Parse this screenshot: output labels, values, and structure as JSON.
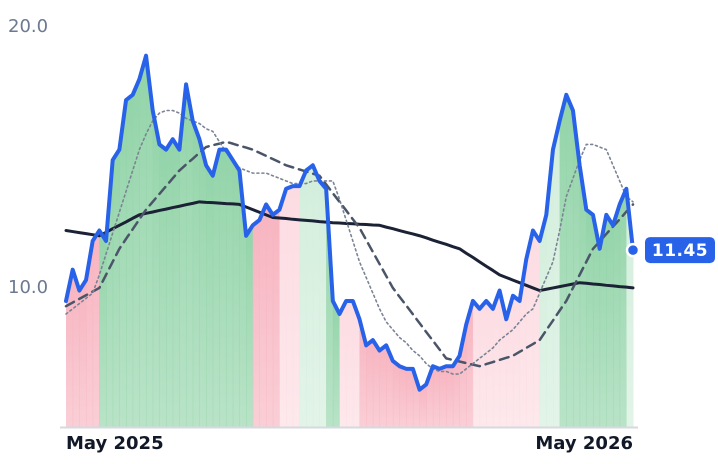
{
  "chart_data": {
    "type": "line",
    "categories": [
      "May 2025",
      null,
      null,
      null,
      null,
      null,
      null,
      null,
      null,
      null,
      null,
      null,
      null,
      null,
      null,
      null,
      null,
      null,
      null,
      null,
      null,
      null,
      null,
      null,
      null,
      null,
      null,
      null,
      null,
      null,
      null,
      null,
      null,
      null,
      null,
      null,
      null,
      null,
      null,
      null,
      null,
      null,
      null,
      null,
      null,
      null,
      null,
      null,
      null,
      null,
      null,
      null,
      null,
      null,
      null,
      null,
      null,
      null,
      null,
      null,
      null,
      null,
      null,
      null,
      null,
      null,
      null,
      null,
      null,
      null,
      null,
      null,
      null,
      null,
      null,
      null,
      null,
      null,
      null,
      null,
      null,
      null,
      null,
      null,
      null,
      "May 2026"
    ],
    "ylim": [
      4.67,
      20
    ],
    "yticks": [
      {
        "value": 10,
        "label": "10.0"
      },
      {
        "value": 20,
        "label": "20.0"
      }
    ],
    "series": [
      {
        "color": "#1c2236",
        "style": "solid",
        "values": [
          12.2,
          12.16,
          12.12,
          12.08,
          12.04,
          12.0,
          12.13,
          12.27,
          12.4,
          12.53,
          12.67,
          12.8,
          12.86,
          12.91,
          12.97,
          13.02,
          13.08,
          13.13,
          13.19,
          13.24,
          13.3,
          13.28,
          13.27,
          13.25,
          13.23,
          13.22,
          13.2,
          13.1,
          13.0,
          12.9,
          12.8,
          12.7,
          12.68,
          12.66,
          12.63,
          12.61,
          12.59,
          12.57,
          12.54,
          12.52,
          12.5,
          12.49,
          12.47,
          12.46,
          12.44,
          12.43,
          12.41,
          12.4,
          12.33,
          12.27,
          12.2,
          12.13,
          12.07,
          12.0,
          11.92,
          11.83,
          11.75,
          11.67,
          11.58,
          11.5,
          11.33,
          11.17,
          11.0,
          10.83,
          10.67,
          10.5,
          10.4,
          10.3,
          10.2,
          10.1,
          10.0,
          9.9,
          9.95,
          10.0,
          10.05,
          10.1,
          10.15,
          10.2,
          10.18,
          10.15,
          10.13,
          10.1,
          10.08,
          10.05,
          10.03,
          10.0
        ]
      },
      {
        "color": "#4a5568",
        "style": "dashed",
        "values": [
          9.3,
          9.44,
          9.58,
          9.72,
          9.86,
          10.0,
          10.5,
          11.0,
          11.5,
          11.88,
          12.25,
          12.63,
          13.0,
          13.3,
          13.6,
          13.9,
          14.2,
          14.5,
          14.73,
          14.95,
          15.18,
          15.4,
          15.47,
          15.53,
          15.6,
          15.53,
          15.45,
          15.38,
          15.3,
          15.18,
          15.06,
          14.94,
          14.82,
          14.7,
          14.62,
          14.54,
          14.46,
          14.38,
          14.3,
          13.97,
          13.63,
          13.3,
          12.97,
          12.63,
          12.3,
          11.84,
          11.38,
          10.92,
          10.46,
          10.0,
          9.66,
          9.33,
          8.99,
          8.65,
          8.31,
          7.98,
          7.64,
          7.3,
          7.24,
          7.18,
          7.12,
          7.06,
          7.0,
          7.08,
          7.16,
          7.24,
          7.32,
          7.4,
          7.55,
          7.7,
          7.85,
          8.0,
          8.38,
          8.75,
          9.13,
          9.5,
          10.0,
          10.5,
          11.0,
          11.5,
          11.78,
          12.07,
          12.35,
          12.63,
          12.92,
          13.2
        ]
      },
      {
        "color": "#7b8494",
        "style": "dotted",
        "values": [
          9.0,
          9.2,
          9.4,
          9.6,
          9.8,
          10.5,
          11.3,
          12.1,
          12.9,
          13.7,
          14.5,
          15.3,
          15.9,
          16.4,
          16.7,
          16.8,
          16.8,
          16.7,
          16.5,
          16.4,
          16.3,
          16.1,
          16.0,
          15.6,
          15.2,
          14.9,
          14.6,
          14.5,
          14.4,
          14.4,
          14.4,
          14.3,
          14.2,
          14.1,
          14.0,
          14.0,
          14.0,
          14.1,
          14.1,
          14.1,
          14.1,
          13.4,
          12.6,
          11.8,
          11.0,
          10.4,
          9.8,
          9.2,
          8.7,
          8.4,
          8.1,
          7.9,
          7.6,
          7.4,
          7.1,
          6.9,
          6.8,
          6.8,
          6.7,
          6.7,
          6.9,
          7.1,
          7.3,
          7.5,
          7.7,
          8.0,
          8.2,
          8.4,
          8.7,
          9.0,
          9.2,
          9.8,
          10.4,
          11.0,
          12.2,
          13.5,
          14.2,
          14.9,
          15.5,
          15.5,
          15.4,
          15.3,
          14.7,
          14.1,
          13.5,
          13.3
        ]
      },
      {
        "color": "#2862e8",
        "style": "thick",
        "values": [
          9.5,
          10.7,
          9.9,
          10.3,
          11.8,
          12.2,
          11.8,
          14.9,
          15.3,
          17.2,
          17.4,
          18.0,
          18.9,
          16.8,
          15.5,
          15.3,
          15.7,
          15.3,
          17.8,
          16.4,
          15.7,
          14.7,
          14.3,
          15.3,
          15.3,
          14.9,
          14.5,
          12.0,
          12.4,
          12.6,
          13.2,
          12.8,
          13.0,
          13.8,
          13.9,
          13.9,
          14.5,
          14.7,
          14.1,
          13.8,
          9.5,
          9.0,
          9.5,
          9.5,
          8.8,
          7.8,
          8.0,
          7.6,
          7.8,
          7.2,
          7.0,
          6.9,
          6.9,
          6.1,
          6.3,
          7.0,
          6.9,
          7.0,
          7.0,
          7.4,
          8.6,
          9.5,
          9.2,
          9.5,
          9.2,
          9.9,
          8.8,
          9.7,
          9.5,
          11.1,
          12.2,
          11.8,
          12.8,
          15.3,
          16.4,
          17.4,
          16.8,
          14.7,
          13.0,
          12.8,
          11.5,
          12.8,
          12.4,
          13.2,
          13.8,
          11.45
        ],
        "area_colors": [
          "#f7b4c0",
          "#f7b4c0",
          "#f7b4c0",
          "#f7b4c0",
          "#f7b4c0",
          "#93d4a9",
          "#93d4a9",
          "#93d4a9",
          "#93d4a9",
          "#93d4a9",
          "#93d4a9",
          "#93d4a9",
          "#93d4a9",
          "#93d4a9",
          "#93d4a9",
          "#93d4a9",
          "#93d4a9",
          "#93d4a9",
          "#93d4a9",
          "#93d4a9",
          "#93d4a9",
          "#93d4a9",
          "#93d4a9",
          "#93d4a9",
          "#93d4a9",
          "#93d4a9",
          "#93d4a9",
          "#93d4a9",
          "#f7b4c0",
          "#f7b4c0",
          "#f7b4c0",
          "#f7b4c0",
          "#fcdce2",
          "#fcdce2",
          "#fcdce2",
          "#d3eedc",
          "#d3eedc",
          "#d3eedc",
          "#d3eedc",
          "#93d4a9",
          "#93d4a9",
          "#fcdce2",
          "#fcdce2",
          "#fcdce2",
          "#f7b4c0",
          "#f7b4c0",
          "#f7b4c0",
          "#f7b4c0",
          "#f7b4c0",
          "#f7b4c0",
          "#f7b4c0",
          "#f7b4c0",
          "#f7b4c0",
          "#f7b4c0",
          "#f7b4c0",
          "#f7b4c0",
          "#f7b4c0",
          "#f7b4c0",
          "#f7b4c0",
          "#f7b4c0",
          "#f7b4c0",
          "#fcdce2",
          "#fcdce2",
          "#fcdce2",
          "#fcdce2",
          "#fcdce2",
          "#fcdce2",
          "#fcdce2",
          "#fcdce2",
          "#fcdce2",
          "#fcdce2",
          "#d3eedc",
          "#d3eedc",
          "#d3eedc",
          "#93d4a9",
          "#93d4a9",
          "#93d4a9",
          "#93d4a9",
          "#93d4a9",
          "#93d4a9",
          "#93d4a9",
          "#93d4a9",
          "#93d4a9",
          "#93d4a9",
          "#d3eedc",
          "#d3eedc"
        ]
      }
    ]
  }
}
